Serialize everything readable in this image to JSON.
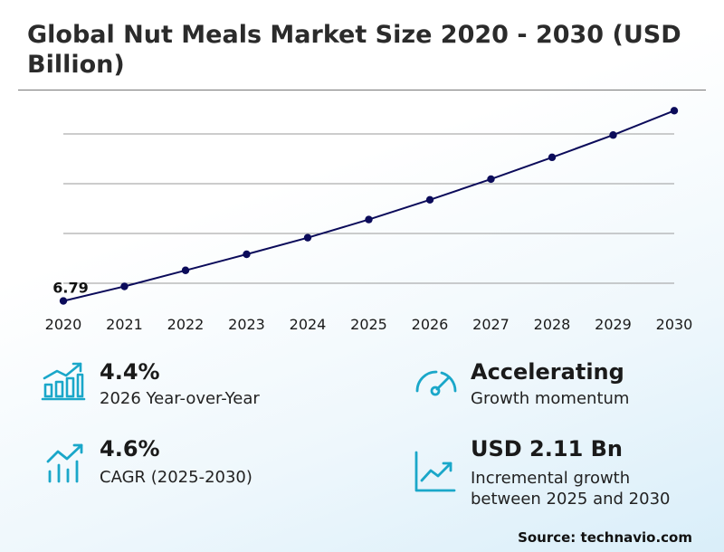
{
  "title": "Global Nut Meals Market Size 2020 - 2030 (USD Billion)",
  "chart_data": {
    "type": "line",
    "title": "Global Nut Meals Market Size 2020 - 2030 (USD Billion)",
    "x": [
      "2020",
      "2021",
      "2022",
      "2023",
      "2024",
      "2025",
      "2026",
      "2027",
      "2028",
      "2029",
      "2030"
    ],
    "series": [
      {
        "values": [
          6.79,
          7.07,
          7.38,
          7.69,
          8.01,
          8.36,
          8.74,
          9.14,
          9.56,
          9.99,
          10.46
        ]
      }
    ],
    "data_labels": [
      {
        "index": 0,
        "text": "6.79"
      }
    ],
    "ylim": [
      5.7,
      10.5
    ],
    "grid": true,
    "line_color": "#0b0b5a"
  },
  "stats": [
    {
      "value": "4.4%",
      "label": "2026 Year-over-Year",
      "icon": "bar-growth-icon"
    },
    {
      "value": "Accelerating",
      "label": "Growth momentum",
      "icon": "gauge-icon"
    },
    {
      "value": "4.6%",
      "label": "CAGR (2025-2030)",
      "icon": "trend-bars-icon"
    },
    {
      "value": "USD 2.11 Bn",
      "label_lines": [
        "Incremental growth",
        "between 2025 and 2030"
      ],
      "icon": "trend-chart-icon"
    }
  ],
  "accent_color": "#1aa7c9",
  "source": "Source: technavio.com"
}
